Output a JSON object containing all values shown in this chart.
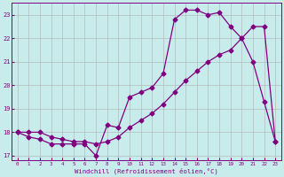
{
  "xlabel": "Windchill (Refroidissement éolien,°C)",
  "bg_color": "#c8ecec",
  "line_color": "#800080",
  "grid_color": "#b0b0b0",
  "ylim": [
    16.8,
    23.5
  ],
  "xlim": [
    -0.5,
    23.5
  ],
  "yticks": [
    17,
    18,
    19,
    20,
    21,
    22,
    23
  ],
  "xticks": [
    0,
    1,
    2,
    3,
    4,
    5,
    6,
    7,
    8,
    9,
    10,
    11,
    12,
    13,
    14,
    15,
    16,
    17,
    18,
    19,
    20,
    21,
    22,
    23
  ],
  "hours": [
    0,
    1,
    2,
    3,
    4,
    5,
    6,
    7,
    8,
    9,
    10,
    11,
    12,
    13,
    14,
    15,
    16,
    17,
    18,
    19,
    20,
    21,
    22,
    23
  ],
  "windchill": [
    18.0,
    17.8,
    17.7,
    17.5,
    17.5,
    17.5,
    17.5,
    17.0,
    18.3,
    18.2,
    19.5,
    19.7,
    19.9,
    20.5,
    22.8,
    23.2,
    23.2,
    23.0,
    23.1,
    22.5,
    22.0,
    21.0,
    19.3,
    17.6
  ],
  "temperature": [
    18.0,
    18.0,
    18.0,
    17.8,
    17.7,
    17.6,
    17.6,
    17.5,
    17.6,
    17.8,
    18.2,
    18.5,
    18.8,
    19.2,
    19.7,
    20.2,
    20.6,
    21.0,
    21.3,
    21.5,
    22.0,
    22.5,
    22.5,
    17.6
  ]
}
